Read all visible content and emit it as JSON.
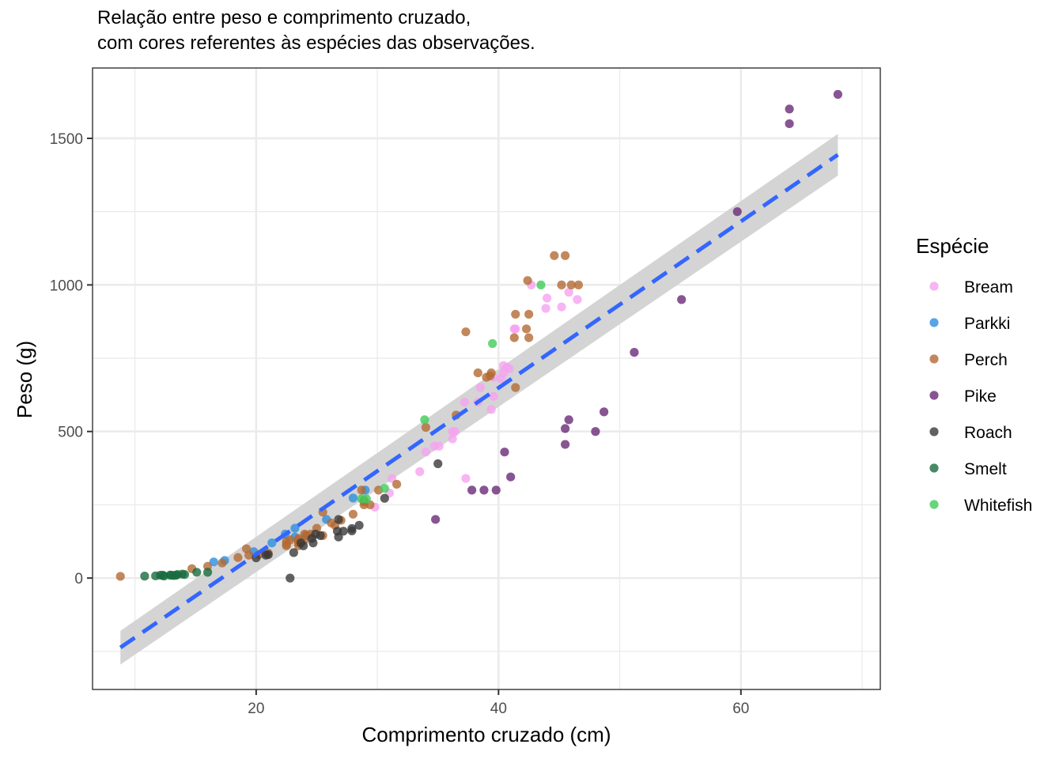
{
  "chart_data": {
    "type": "scatter",
    "title_lines": [
      "Relação entre peso e comprimento cruzado,",
      "com cores referentes às espécies das observações."
    ],
    "xlabel": "Comprimento cruzado (cm)",
    "ylabel": "Peso (g)",
    "xlim": [
      6.5,
      71.5
    ],
    "ylim": [
      -380,
      1740
    ],
    "x_ticks": [
      20,
      40,
      60
    ],
    "x_tick_labels": [
      "20",
      "40",
      "60"
    ],
    "y_ticks": [
      0,
      500,
      1000,
      1500
    ],
    "y_tick_labels": [
      "0",
      "500",
      "1000",
      "1500"
    ],
    "grid": true,
    "legend": {
      "title": "Espécie",
      "placement": "right"
    },
    "series": [
      {
        "name": "Bream",
        "color": "#f5a3f0",
        "points": [
          [
            29.8,
            242
          ],
          [
            31.0,
            290
          ],
          [
            31.2,
            340
          ],
          [
            33.5,
            363
          ],
          [
            34.0,
            430
          ],
          [
            34.7,
            450
          ],
          [
            35.1,
            450
          ],
          [
            36.2,
            500
          ],
          [
            36.2,
            475
          ],
          [
            36.4,
            500
          ],
          [
            37.2,
            600
          ],
          [
            37.3,
            340
          ],
          [
            38.3,
            600
          ],
          [
            38.5,
            650
          ],
          [
            39.4,
            575
          ],
          [
            39.6,
            685
          ],
          [
            39.6,
            620
          ],
          [
            40.2,
            680
          ],
          [
            40.4,
            700
          ],
          [
            40.4,
            725
          ],
          [
            40.7,
            720
          ],
          [
            40.9,
            714
          ],
          [
            41.3,
            850
          ],
          [
            41.4,
            850
          ],
          [
            42.7,
            1000
          ],
          [
            43.9,
            920
          ],
          [
            44.0,
            955
          ],
          [
            45.2,
            925
          ],
          [
            45.8,
            975
          ],
          [
            46.5,
            950
          ]
        ]
      },
      {
        "name": "Parkki",
        "color": "#2b8fe0",
        "points": [
          [
            16.5,
            55
          ],
          [
            17.4,
            60
          ],
          [
            19.8,
            90
          ],
          [
            21.3,
            120
          ],
          [
            22.4,
            150
          ],
          [
            23.2,
            140
          ],
          [
            23.2,
            170
          ],
          [
            24.1,
            145
          ],
          [
            25.8,
            200
          ],
          [
            28.0,
            273
          ],
          [
            29.0,
            300
          ]
        ]
      },
      {
        "name": "Perch",
        "color": "#b36a33",
        "points": [
          [
            8.8,
            5.9
          ],
          [
            14.7,
            32
          ],
          [
            16.0,
            40
          ],
          [
            17.2,
            51.5
          ],
          [
            18.5,
            70
          ],
          [
            19.2,
            100
          ],
          [
            19.4,
            78
          ],
          [
            20.2,
            80
          ],
          [
            20.8,
            85
          ],
          [
            21.0,
            85
          ],
          [
            22.5,
            110
          ],
          [
            22.5,
            115
          ],
          [
            22.5,
            125
          ],
          [
            22.8,
            130
          ],
          [
            23.5,
            120
          ],
          [
            23.5,
            120
          ],
          [
            23.5,
            130
          ],
          [
            23.5,
            135
          ],
          [
            23.5,
            110
          ],
          [
            24.0,
            130
          ],
          [
            24.0,
            150
          ],
          [
            24.2,
            145
          ],
          [
            24.5,
            150
          ],
          [
            25.0,
            170
          ],
          [
            25.5,
            225
          ],
          [
            25.5,
            145
          ],
          [
            26.2,
            188
          ],
          [
            26.5,
            180
          ],
          [
            27.0,
            197
          ],
          [
            28.0,
            218
          ],
          [
            28.7,
            300
          ],
          [
            28.9,
            260
          ],
          [
            28.9,
            265
          ],
          [
            28.9,
            250
          ],
          [
            29.4,
            250
          ],
          [
            30.1,
            300
          ],
          [
            31.6,
            320
          ],
          [
            34.0,
            514
          ],
          [
            36.5,
            556
          ],
          [
            37.3,
            840
          ],
          [
            39.0,
            685
          ],
          [
            38.3,
            700
          ],
          [
            39.4,
            700
          ],
          [
            39.3,
            690
          ],
          [
            41.4,
            900
          ],
          [
            41.4,
            650
          ],
          [
            41.3,
            820
          ],
          [
            42.3,
            850
          ],
          [
            42.5,
            900
          ],
          [
            42.4,
            1015
          ],
          [
            42.5,
            820
          ],
          [
            44.6,
            1100
          ],
          [
            45.2,
            1000
          ],
          [
            45.5,
            1100
          ],
          [
            46.0,
            1000
          ],
          [
            46.6,
            1000
          ]
        ]
      },
      {
        "name": "Pike",
        "color": "#6a2a78",
        "points": [
          [
            34.8,
            200
          ],
          [
            37.8,
            300
          ],
          [
            38.8,
            300
          ],
          [
            39.8,
            300
          ],
          [
            40.5,
            430
          ],
          [
            41.0,
            345
          ],
          [
            45.5,
            456
          ],
          [
            45.5,
            510
          ],
          [
            45.8,
            540
          ],
          [
            48.0,
            500
          ],
          [
            48.7,
            567
          ],
          [
            51.2,
            770
          ],
          [
            55.1,
            950
          ],
          [
            59.7,
            1250
          ],
          [
            64.0,
            1600
          ],
          [
            64.0,
            1550
          ],
          [
            68.0,
            1650
          ]
        ]
      },
      {
        "name": "Roach",
        "color": "#3a3a3a",
        "points": [
          [
            20.0,
            69
          ],
          [
            20.8,
            78
          ],
          [
            23.1,
            87
          ],
          [
            23.7,
            120
          ],
          [
            22.8,
            0
          ],
          [
            23.9,
            110
          ],
          [
            24.7,
            120
          ],
          [
            24.9,
            150
          ],
          [
            25.3,
            145
          ],
          [
            26.7,
            160
          ],
          [
            26.8,
            140
          ],
          [
            27.2,
            160
          ],
          [
            27.9,
            169
          ],
          [
            27.9,
            161
          ],
          [
            26.8,
            200
          ],
          [
            28.5,
            180
          ],
          [
            30.6,
            272
          ],
          [
            21.0,
            80
          ],
          [
            35.0,
            390
          ],
          [
            24.6,
            135
          ]
        ]
      },
      {
        "name": "Smelt",
        "color": "#1a6b40",
        "points": [
          [
            10.8,
            6.7
          ],
          [
            11.7,
            7.5
          ],
          [
            12.4,
            7.0
          ],
          [
            12.1,
            9.7
          ],
          [
            12.3,
            9.8
          ],
          [
            13.2,
            8.7
          ],
          [
            12.9,
            10.0
          ],
          [
            13.0,
            9.9
          ],
          [
            13.4,
            9.8
          ],
          [
            13.5,
            12.2
          ],
          [
            13.9,
            13.4
          ],
          [
            14.1,
            12.2
          ],
          [
            15.1,
            19.7
          ],
          [
            16.0,
            19.9
          ]
        ]
      },
      {
        "name": "Whitefish",
        "color": "#40cc5a",
        "points": [
          [
            28.7,
            270
          ],
          [
            30.6,
            306
          ],
          [
            33.9,
            540
          ],
          [
            39.5,
            800
          ],
          [
            43.5,
            1000
          ],
          [
            29.1,
            270
          ]
        ]
      }
    ],
    "trend_line": {
      "color": "#3366ff",
      "style": "dashed",
      "x": [
        8.8,
        68.0
      ],
      "y": [
        -237,
        1444
      ],
      "ci_lower": [
        -295,
        1373
      ],
      "ci_upper": [
        -180,
        1515
      ],
      "ci_color": "#d2d2d2"
    }
  }
}
